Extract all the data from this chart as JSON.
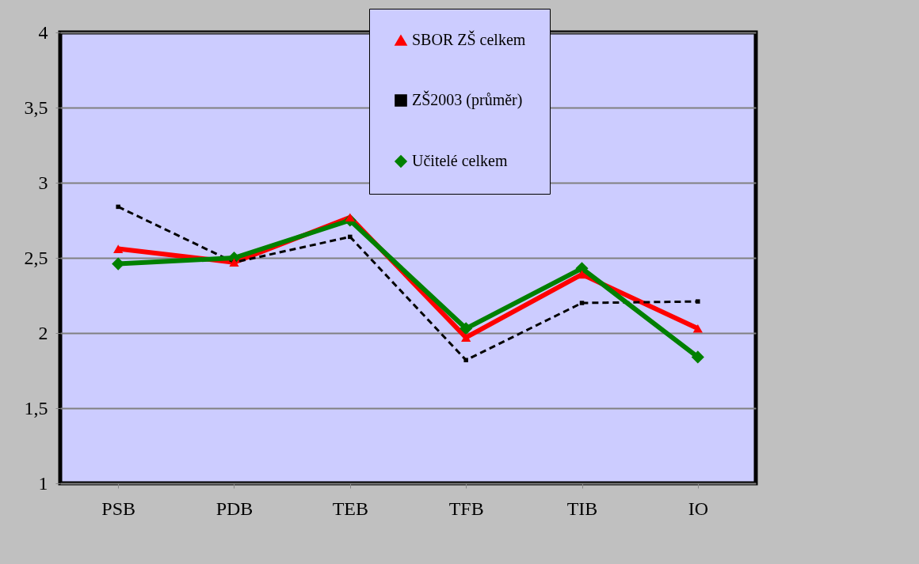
{
  "chart_data": {
    "type": "line",
    "categories": [
      "PSB",
      "PDB",
      "TEB",
      "TFB",
      "TIB",
      "IO"
    ],
    "series": [
      {
        "name": "SBOR ZŠ celkem",
        "color": "#ff0000",
        "marker": "triangle",
        "line_style": "solid",
        "values": [
          2.56,
          2.47,
          2.77,
          1.97,
          2.39,
          2.03
        ]
      },
      {
        "name": "ZŠ2003 (průměr)",
        "color": "#000000",
        "marker": "square",
        "line_style": "dashed",
        "values": [
          2.84,
          2.47,
          2.64,
          1.82,
          2.2,
          2.21
        ]
      },
      {
        "name": "Učitelé celkem",
        "color": "#008000",
        "marker": "diamond",
        "line_style": "solid",
        "values": [
          2.46,
          2.5,
          2.75,
          2.03,
          2.43,
          1.84
        ]
      }
    ],
    "ylim": [
      1,
      4
    ],
    "yticks": [
      1,
      {
        "value": 1.5,
        "label": "1,5"
      },
      2,
      {
        "value": 2.5,
        "label": "2,5"
      },
      3,
      {
        "value": 3.5,
        "label": "3,5"
      },
      4
    ],
    "grid": "y",
    "legend": "top right"
  }
}
